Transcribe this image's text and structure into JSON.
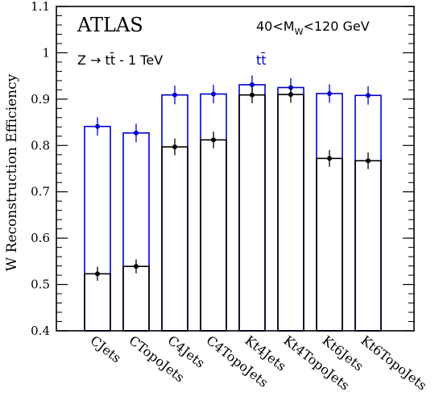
{
  "chart_data": {
    "type": "bar",
    "categories": [
      "CJets",
      "CTopoJets",
      "C4Jets",
      "C4TopoJets",
      "Kt4Jets",
      "Kt4TopoJets",
      "Kt6Jets",
      "Kt6TopoJets"
    ],
    "series": [
      {
        "name": "tt̄",
        "color": "#0000cc",
        "values": [
          0.841,
          0.827,
          0.909,
          0.911,
          0.931,
          0.925,
          0.912,
          0.908
        ],
        "errors": [
          0.02,
          0.02,
          0.02,
          0.02,
          0.02,
          0.02,
          0.02,
          0.02
        ]
      },
      {
        "name": "Z → tt̄ - 1 TeV",
        "color": "#000000",
        "values": [
          0.523,
          0.539,
          0.797,
          0.812,
          0.909,
          0.91,
          0.772,
          0.767
        ],
        "errors": [
          0.015,
          0.015,
          0.018,
          0.018,
          0.018,
          0.018,
          0.018,
          0.018
        ]
      }
    ],
    "ylabel": "W Reconstruction Efficiency",
    "xlabel": "",
    "ylim": [
      0.4,
      1.1
    ],
    "yticks": [
      "0.4",
      "0.5",
      "0.6",
      "0.7",
      "0.8",
      "0.9",
      "1",
      "1.1"
    ],
    "experiment_label": "ATLAS",
    "mass_window": {
      "prefix": "40<M",
      "subscript": "W",
      "suffix": "<120 GeV"
    },
    "grid": false
  }
}
